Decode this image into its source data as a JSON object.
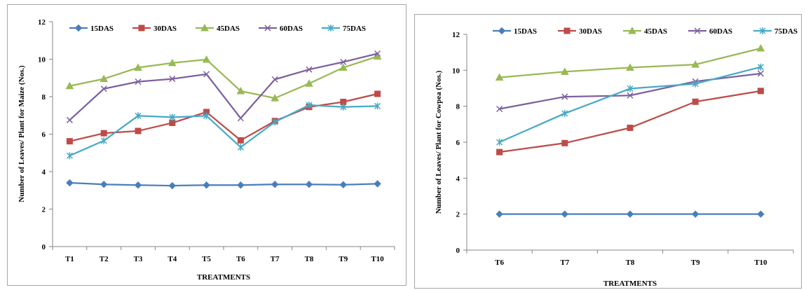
{
  "chart_data": [
    {
      "type": "line",
      "title": "",
      "xlabel": "TREATMENTS",
      "ylabel": "Number of Leaves/ Plant for Maize (Nos.)",
      "categories": [
        "T1",
        "T2",
        "T3",
        "T4",
        "T5",
        "T6",
        "T7",
        "T8",
        "T9",
        "T10"
      ],
      "ylim": [
        0,
        12
      ],
      "yticks": [
        "0",
        "2",
        "4",
        "6",
        "8",
        "10",
        "12"
      ],
      "legend_position": "top",
      "grid": false,
      "series": [
        {
          "name": "15DAS",
          "color": "#4a7ebb",
          "marker": "diamond",
          "values": [
            3.4,
            3.32,
            3.28,
            3.25,
            3.28,
            3.28,
            3.32,
            3.32,
            3.3,
            3.35
          ]
        },
        {
          "name": "30DAS",
          "color": "#be4b48",
          "marker": "square",
          "values": [
            5.62,
            6.05,
            6.17,
            6.6,
            7.18,
            5.67,
            6.7,
            7.45,
            7.72,
            8.15
          ]
        },
        {
          "name": "45DAS",
          "color": "#98b954",
          "marker": "triangle",
          "values": [
            8.57,
            8.95,
            9.55,
            9.8,
            9.98,
            8.3,
            7.92,
            8.7,
            9.55,
            10.15
          ]
        },
        {
          "name": "60DAS",
          "color": "#7d60a0",
          "marker": "x",
          "values": [
            6.75,
            8.42,
            8.8,
            8.95,
            9.2,
            6.85,
            8.92,
            9.45,
            9.85,
            10.3
          ]
        },
        {
          "name": "75DAS",
          "color": "#46aac5",
          "marker": "star",
          "values": [
            4.85,
            5.65,
            6.98,
            6.9,
            6.98,
            5.3,
            6.65,
            7.55,
            7.45,
            7.5
          ]
        }
      ]
    },
    {
      "type": "line",
      "title": "",
      "xlabel": "TREATMENTS",
      "ylabel": "Number of Leaves/ Plant for Cowpea  (Nos.)",
      "categories": [
        "T6",
        "T7",
        "T8",
        "T9",
        "T10"
      ],
      "ylim": [
        0,
        12
      ],
      "yticks": [
        "0",
        "2",
        "4",
        "6",
        "8",
        "10",
        "12"
      ],
      "legend_position": "top",
      "grid": false,
      "series": [
        {
          "name": "15DAS",
          "color": "#4a7ebb",
          "marker": "diamond",
          "values": [
            2.0,
            2.0,
            2.0,
            2.0,
            2.0
          ]
        },
        {
          "name": "30DAS",
          "color": "#be4b48",
          "marker": "square",
          "values": [
            5.45,
            5.95,
            6.8,
            8.25,
            8.85
          ]
        },
        {
          "name": "45DAS",
          "color": "#98b954",
          "marker": "triangle",
          "values": [
            9.6,
            9.92,
            10.15,
            10.32,
            11.22
          ]
        },
        {
          "name": "60DAS",
          "color": "#7d60a0",
          "marker": "x",
          "values": [
            7.85,
            8.53,
            8.6,
            9.38,
            9.82
          ]
        },
        {
          "name": "75DAS",
          "color": "#46aac5",
          "marker": "star",
          "values": [
            6.0,
            7.6,
            8.98,
            9.25,
            10.18
          ]
        }
      ]
    }
  ]
}
